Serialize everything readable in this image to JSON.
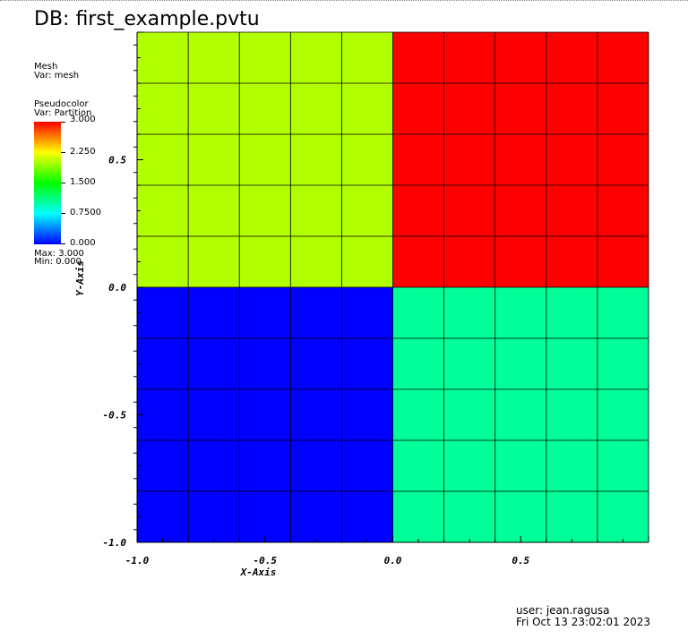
{
  "window": {
    "title": "DB: first_example.pvtu"
  },
  "legend": {
    "mesh_plot": "Mesh",
    "mesh_var": "Var: mesh",
    "pc_plot": "Pseudocolor",
    "pc_var": "Var: Partition",
    "ticks": [
      "3.000",
      "2.250",
      "1.500",
      "0.7500",
      "0.000"
    ],
    "max_label": "Max:  3.000",
    "min_label": "Min:  0.000",
    "colors": [
      "#ff0000",
      "#ffff00",
      "#00ff00",
      "#00ffff",
      "#0000ff"
    ]
  },
  "user_info": {
    "user": "user: jean.ragusa",
    "timestamp": "Fri Oct 13 23:02:01 2023"
  },
  "chart_data": {
    "type": "heatmap",
    "xlabel": "X-Axis",
    "ylabel": "Y-Axis",
    "xlim": [
      -1.0,
      1.0
    ],
    "ylim": [
      -1.0,
      1.0
    ],
    "x_ticks": [
      -1.0,
      -0.5,
      0.0,
      0.5
    ],
    "x_tick_labels": [
      "-1.0",
      "-0.5",
      "0.0",
      "0.5"
    ],
    "y_ticks": [
      -1.0,
      -0.5,
      0.0,
      0.5
    ],
    "y_tick_labels": [
      "-1.0",
      "-0.5",
      "0.0",
      "0.5"
    ],
    "variable": "Partition",
    "color_range": [
      0.0,
      3.0
    ],
    "mesh_cells_per_side": 10,
    "regions": [
      {
        "x": [
          -1.0,
          0.0
        ],
        "y": [
          0.0,
          1.0
        ],
        "partition": 2,
        "color": "#b2ff00"
      },
      {
        "x": [
          0.0,
          1.0
        ],
        "y": [
          0.0,
          1.0
        ],
        "partition": 3,
        "color": "#ff0000"
      },
      {
        "x": [
          -1.0,
          0.0
        ],
        "y": [
          -1.0,
          0.0
        ],
        "partition": 0,
        "color": "#0000ff"
      },
      {
        "x": [
          0.0,
          1.0
        ],
        "y": [
          -1.0,
          0.0
        ],
        "partition": 1,
        "color": "#00ff99"
      }
    ]
  }
}
